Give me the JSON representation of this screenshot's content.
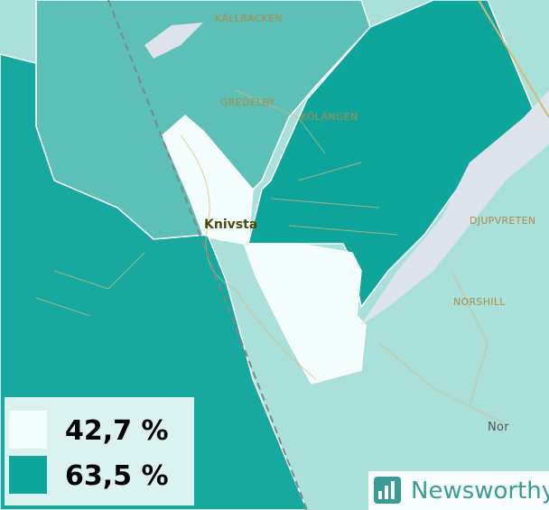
{
  "places": [
    "KÄLLBACKEN",
    "GREDELBY",
    "KÖLÄNGEN",
    "Knivsta",
    "DJUPVRETEN",
    "NORSHILL",
    "Nor"
  ],
  "legend": {
    "items": [
      {
        "label": "42,7 %",
        "color": "#f3fdfc"
      },
      {
        "label": "63,5 %",
        "color": "#0ea59c"
      }
    ]
  },
  "brand": "Newsworthy"
}
